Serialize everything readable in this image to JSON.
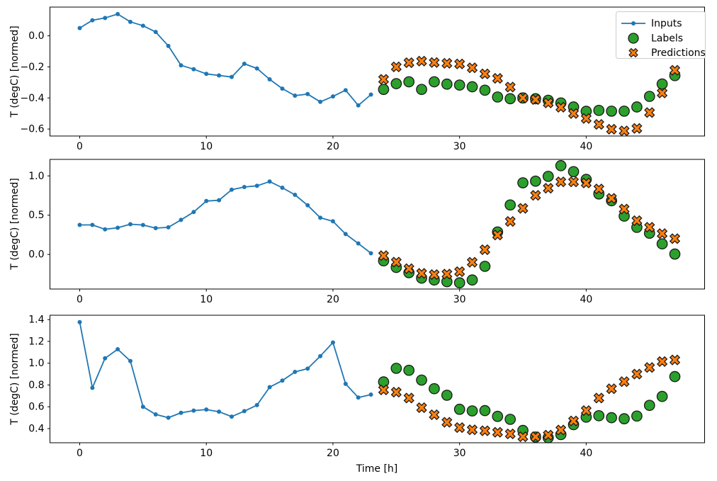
{
  "figure": {
    "xlabel": "Time [h]",
    "ylabel": "T (degC) [normed]",
    "background": "#ffffff",
    "legend": {
      "items": [
        {
          "label": "Inputs",
          "marker": "line-dot-icon",
          "color": "#1f77b4"
        },
        {
          "label": "Labels",
          "marker": "circle-icon",
          "color": "#2ca02c"
        },
        {
          "label": "Predictions",
          "marker": "x-icon",
          "color": "#ff7f0e"
        }
      ]
    },
    "colors": {
      "inputs": "#1f77b4",
      "labels": "#2ca02c",
      "predictions": "#ff7f0e",
      "marker_edge": "#1a1a1a",
      "spine": "#000000",
      "legend_border": "#cccccc"
    }
  },
  "chart_data": [
    {
      "type": "line",
      "title": "",
      "xlabel": "",
      "ylabel": "T (degC) [normed]",
      "xlim": [
        -2.35,
        49.35
      ],
      "ylim": [
        -0.645,
        0.185
      ],
      "xticks": [
        0,
        10,
        20,
        30,
        40
      ],
      "xtick_labels": [
        "0",
        "10",
        "20",
        "30",
        "40"
      ],
      "yticks": [
        0.0,
        -0.2,
        -0.4,
        -0.6
      ],
      "ytick_labels": [
        "0.0",
        "−0.2",
        "−0.4",
        "−0.6"
      ],
      "grid": false,
      "legend_position": "upper right",
      "series": [
        {
          "name": "Inputs",
          "style": "line-dot",
          "color": "#1f77b4",
          "x": [
            0,
            1,
            2,
            3,
            4,
            5,
            6,
            7,
            8,
            9,
            10,
            11,
            12,
            13,
            14,
            15,
            16,
            17,
            18,
            19,
            20,
            21,
            22,
            23
          ],
          "y": [
            0.05,
            0.1,
            0.115,
            0.14,
            0.09,
            0.065,
            0.025,
            -0.065,
            -0.19,
            -0.215,
            -0.245,
            -0.255,
            -0.265,
            -0.18,
            -0.21,
            -0.28,
            -0.34,
            -0.385,
            -0.375,
            -0.425,
            -0.39,
            -0.35,
            -0.448,
            -0.378
          ]
        },
        {
          "name": "Labels",
          "style": "circle",
          "color": "#2ca02c",
          "x": [
            24,
            25,
            26,
            27,
            28,
            29,
            30,
            31,
            32,
            33,
            34,
            35,
            36,
            37,
            38,
            39,
            40,
            41,
            42,
            43,
            44,
            45,
            46,
            47
          ],
          "y": [
            -0.345,
            -0.308,
            -0.296,
            -0.345,
            -0.296,
            -0.311,
            -0.317,
            -0.328,
            -0.35,
            -0.394,
            -0.405,
            -0.4,
            -0.405,
            -0.415,
            -0.432,
            -0.458,
            -0.486,
            -0.48,
            -0.485,
            -0.485,
            -0.458,
            -0.39,
            -0.31,
            -0.256
          ]
        },
        {
          "name": "Predictions",
          "style": "x",
          "color": "#ff7f0e",
          "x": [
            24,
            25,
            26,
            27,
            28,
            29,
            30,
            31,
            32,
            33,
            34,
            35,
            36,
            37,
            38,
            39,
            40,
            41,
            42,
            43,
            44,
            45,
            46,
            47
          ],
          "y": [
            -0.28,
            -0.2,
            -0.173,
            -0.163,
            -0.172,
            -0.177,
            -0.181,
            -0.206,
            -0.245,
            -0.274,
            -0.33,
            -0.4,
            -0.41,
            -0.432,
            -0.46,
            -0.5,
            -0.532,
            -0.57,
            -0.601,
            -0.612,
            -0.596,
            -0.494,
            -0.368,
            -0.222
          ]
        }
      ]
    },
    {
      "type": "line",
      "title": "",
      "xlabel": "",
      "ylabel": "T (degC) [normed]",
      "xlim": [
        -2.35,
        49.35
      ],
      "ylim": [
        -0.44,
        1.21
      ],
      "xticks": [
        0,
        10,
        20,
        30,
        40
      ],
      "xtick_labels": [
        "0",
        "10",
        "20",
        "30",
        "40"
      ],
      "yticks": [
        0.0,
        0.5,
        1.0
      ],
      "ytick_labels": [
        "0.0",
        "0.5",
        "1.0"
      ],
      "grid": false,
      "legend_position": "none",
      "series": [
        {
          "name": "Inputs",
          "style": "line-dot",
          "color": "#1f77b4",
          "x": [
            0,
            1,
            2,
            3,
            4,
            5,
            6,
            7,
            8,
            9,
            10,
            11,
            12,
            13,
            14,
            15,
            16,
            17,
            18,
            19,
            20,
            21,
            22,
            23
          ],
          "y": [
            0.376,
            0.376,
            0.32,
            0.34,
            0.385,
            0.375,
            0.335,
            0.345,
            0.44,
            0.54,
            0.68,
            0.69,
            0.824,
            0.858,
            0.874,
            0.928,
            0.849,
            0.759,
            0.626,
            0.467,
            0.422,
            0.26,
            0.14,
            0.015
          ]
        },
        {
          "name": "Labels",
          "style": "circle",
          "color": "#2ca02c",
          "x": [
            24,
            25,
            26,
            27,
            28,
            29,
            30,
            31,
            32,
            33,
            34,
            35,
            36,
            37,
            38,
            39,
            40,
            41,
            42,
            43,
            44,
            45,
            46,
            47
          ],
          "y": [
            -0.081,
            -0.165,
            -0.232,
            -0.301,
            -0.325,
            -0.346,
            -0.361,
            -0.325,
            -0.151,
            0.286,
            0.63,
            0.912,
            0.933,
            0.994,
            1.13,
            1.054,
            0.955,
            0.77,
            0.684,
            0.488,
            0.345,
            0.27,
            0.135,
            0.005
          ]
        },
        {
          "name": "Predictions",
          "style": "x",
          "color": "#ff7f0e",
          "x": [
            24,
            25,
            26,
            27,
            28,
            29,
            30,
            31,
            32,
            33,
            34,
            35,
            36,
            37,
            38,
            39,
            40,
            41,
            42,
            43,
            44,
            45,
            46,
            47
          ],
          "y": [
            -0.015,
            -0.097,
            -0.181,
            -0.241,
            -0.256,
            -0.25,
            -0.219,
            -0.099,
            0.06,
            0.247,
            0.42,
            0.587,
            0.753,
            0.843,
            0.924,
            0.924,
            0.91,
            0.834,
            0.714,
            0.578,
            0.43,
            0.346,
            0.265,
            0.201
          ]
        }
      ]
    },
    {
      "type": "line",
      "title": "",
      "xlabel": "Time [h]",
      "ylabel": "T (degC) [normed]",
      "xlim": [
        -2.35,
        49.35
      ],
      "ylim": [
        0.27,
        1.44
      ],
      "xticks": [
        0,
        10,
        20,
        30,
        40
      ],
      "xtick_labels": [
        "0",
        "10",
        "20",
        "30",
        "40"
      ],
      "yticks": [
        0.4,
        0.6,
        0.8,
        1.0,
        1.2,
        1.4
      ],
      "ytick_labels": [
        "0.4",
        "0.6",
        "0.8",
        "1.0",
        "1.2",
        "1.4"
      ],
      "grid": false,
      "legend_position": "none",
      "series": [
        {
          "name": "Inputs",
          "style": "line-dot",
          "color": "#1f77b4",
          "x": [
            0,
            1,
            2,
            3,
            4,
            5,
            6,
            7,
            8,
            9,
            10,
            11,
            12,
            13,
            14,
            15,
            16,
            17,
            18,
            19,
            20,
            21,
            22,
            23
          ],
          "y": [
            1.377,
            0.774,
            1.045,
            1.128,
            1.02,
            0.6,
            0.53,
            0.5,
            0.545,
            0.565,
            0.575,
            0.555,
            0.51,
            0.56,
            0.615,
            0.78,
            0.84,
            0.92,
            0.95,
            1.065,
            1.19,
            0.81,
            0.685,
            0.712
          ]
        },
        {
          "name": "Labels",
          "style": "circle",
          "color": "#2ca02c",
          "x": [
            24,
            25,
            26,
            27,
            28,
            29,
            30,
            31,
            32,
            33,
            34,
            35,
            36,
            37,
            38,
            39,
            40,
            41,
            42,
            43,
            44,
            45,
            46,
            47
          ],
          "y": [
            0.828,
            0.953,
            0.935,
            0.845,
            0.766,
            0.706,
            0.577,
            0.562,
            0.565,
            0.512,
            0.485,
            0.383,
            0.322,
            0.316,
            0.345,
            0.436,
            0.505,
            0.518,
            0.5,
            0.49,
            0.515,
            0.613,
            0.695,
            0.877
          ]
        },
        {
          "name": "Predictions",
          "style": "x",
          "color": "#ff7f0e",
          "x": [
            24,
            25,
            26,
            27,
            28,
            29,
            30,
            31,
            32,
            33,
            34,
            35,
            36,
            37,
            38,
            39,
            40,
            41,
            42,
            43,
            44,
            45,
            46,
            47
          ],
          "y": [
            0.755,
            0.734,
            0.68,
            0.592,
            0.527,
            0.458,
            0.409,
            0.389,
            0.38,
            0.366,
            0.351,
            0.325,
            0.325,
            0.34,
            0.387,
            0.47,
            0.565,
            0.68,
            0.765,
            0.83,
            0.9,
            0.96,
            1.015,
            1.03
          ]
        }
      ]
    }
  ]
}
